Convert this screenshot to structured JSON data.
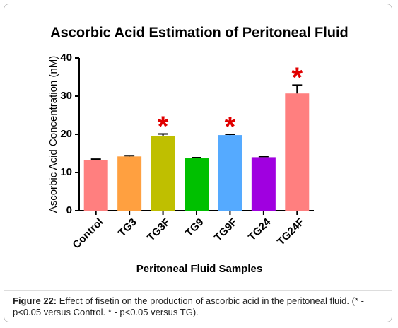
{
  "chart_data": {
    "type": "bar",
    "title": "Ascorbic Acid Estimation of Peritoneal Fluid",
    "x_label": "Peritoneal Fluid Samples",
    "y_label": "Ascorbic Acid Concentration (nM)",
    "categories": [
      "Control",
      "TG3",
      "TG3F",
      "TG9",
      "TG9F",
      "TG24",
      "TG24F"
    ],
    "values": [
      13.3,
      14.2,
      19.5,
      13.7,
      19.8,
      14.0,
      30.7
    ],
    "errors": [
      0.2,
      0.2,
      0.6,
      0.2,
      0.2,
      0.2,
      2.2
    ],
    "colors": [
      "#ff7f7f",
      "#ffa040",
      "#bfbf00",
      "#00c000",
      "#55aaff",
      "#a000e0",
      "#ff7f7f"
    ],
    "ylim": [
      0,
      40
    ],
    "yticks": [
      0,
      10,
      20,
      30,
      40
    ],
    "annotations": [
      {
        "text": "*",
        "category": "TG3F"
      },
      {
        "text": "*",
        "category": "TG9F"
      },
      {
        "text": "*",
        "category": "TG24F"
      }
    ],
    "annotation_color": "#e00000"
  },
  "caption": {
    "label": "Figure 22:",
    "text": "Effect of fisetin on the production of ascorbic acid in the peritoneal fluid. (* - p<0.05 versus Control. * - p<0.05 versus TG)."
  }
}
